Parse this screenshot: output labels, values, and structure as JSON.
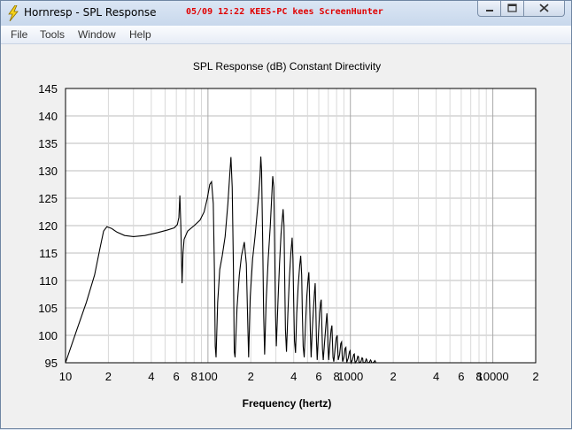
{
  "window": {
    "title": "Hornresp - SPL Response",
    "overlay_stamp": "05/09 12:22 KEES-PC kees ScreenHunter",
    "icon": "lightning-bolt-icon",
    "controls": [
      "minimize-icon",
      "maximize-icon",
      "close-icon"
    ]
  },
  "menu": {
    "items": [
      "File",
      "Tools",
      "Window",
      "Help"
    ]
  },
  "chart_data": {
    "type": "line",
    "title": "SPL Response (dB)   Constant Directivity",
    "xlabel": "Frequency (hertz)",
    "ylabel": "",
    "x_scale": "log",
    "xlim": [
      10,
      20000
    ],
    "ylim": [
      95,
      145
    ],
    "grid": true,
    "y_ticks": [
      95,
      100,
      105,
      110,
      115,
      120,
      125,
      130,
      135,
      140,
      145
    ],
    "x_ticks": [
      {
        "value": 10,
        "label": "10"
      },
      {
        "value": 20,
        "label": "2"
      },
      {
        "value": 40,
        "label": "4"
      },
      {
        "value": 60,
        "label": "6"
      },
      {
        "value": 80,
        "label": "8"
      },
      {
        "value": 100,
        "label": "100"
      },
      {
        "value": 200,
        "label": "2"
      },
      {
        "value": 400,
        "label": "4"
      },
      {
        "value": 600,
        "label": "6"
      },
      {
        "value": 800,
        "label": "8"
      },
      {
        "value": 1000,
        "label": "1000"
      },
      {
        "value": 2000,
        "label": "2"
      },
      {
        "value": 4000,
        "label": "4"
      },
      {
        "value": 6000,
        "label": "6"
      },
      {
        "value": 8000,
        "label": "8"
      },
      {
        "value": 10000,
        "label": "10000"
      },
      {
        "value": 20000,
        "label": "2"
      }
    ],
    "series": [
      {
        "color": "#000000",
        "points": [
          [
            10,
            95
          ],
          [
            12,
            101
          ],
          [
            14,
            106
          ],
          [
            16,
            111
          ],
          [
            17.5,
            116
          ],
          [
            18.5,
            119
          ],
          [
            19.5,
            119.8
          ],
          [
            21,
            119.5
          ],
          [
            23,
            118.8
          ],
          [
            26,
            118.2
          ],
          [
            30,
            118
          ],
          [
            36,
            118.2
          ],
          [
            44,
            118.7
          ],
          [
            52,
            119.2
          ],
          [
            58,
            119.6
          ],
          [
            61,
            120.2
          ],
          [
            62.5,
            121.5
          ],
          [
            63.5,
            125.5
          ],
          [
            64.5,
            120
          ],
          [
            65.2,
            114
          ],
          [
            65.8,
            109.5
          ],
          [
            66.8,
            115
          ],
          [
            68,
            117.5
          ],
          [
            72,
            119
          ],
          [
            80,
            120
          ],
          [
            88,
            121
          ],
          [
            94,
            122.5
          ],
          [
            99,
            125
          ],
          [
            103,
            127.5
          ],
          [
            106,
            128
          ],
          [
            109,
            124
          ],
          [
            111,
            112
          ],
          [
            112.5,
            98
          ],
          [
            114,
            96
          ],
          [
            117,
            106
          ],
          [
            121,
            112
          ],
          [
            126,
            114.5
          ],
          [
            132,
            118
          ],
          [
            138,
            124
          ],
          [
            142,
            129
          ],
          [
            145,
            132.5
          ],
          [
            148,
            127
          ],
          [
            151,
            112
          ],
          [
            153,
            97
          ],
          [
            155,
            96
          ],
          [
            160,
            105
          ],
          [
            166,
            111
          ],
          [
            172,
            114.5
          ],
          [
            180,
            117
          ],
          [
            186,
            113
          ],
          [
            190,
            103
          ],
          [
            193,
            96
          ],
          [
            198,
            107
          ],
          [
            206,
            114
          ],
          [
            214,
            118
          ],
          [
            221,
            122
          ],
          [
            227,
            125.5
          ],
          [
            232,
            129
          ],
          [
            235,
            132.6
          ],
          [
            238,
            130
          ],
          [
            242,
            118
          ],
          [
            246,
            104
          ],
          [
            250,
            96.5
          ],
          [
            256,
            106
          ],
          [
            265,
            114
          ],
          [
            274,
            120
          ],
          [
            280,
            125
          ],
          [
            285,
            129
          ],
          [
            290,
            127
          ],
          [
            294,
            116
          ],
          [
            298,
            104
          ],
          [
            302,
            98
          ],
          [
            310,
            106
          ],
          [
            318,
            113
          ],
          [
            326,
            118.5
          ],
          [
            332,
            121
          ],
          [
            337,
            123
          ],
          [
            342,
            120
          ],
          [
            346,
            110
          ],
          [
            350,
            101
          ],
          [
            356,
            97
          ],
          [
            364,
            104
          ],
          [
            373,
            110.5
          ],
          [
            382,
            115
          ],
          [
            390,
            117.8
          ],
          [
            395,
            114
          ],
          [
            400,
            106
          ],
          [
            405,
            99
          ],
          [
            412,
            96.8
          ],
          [
            420,
            104
          ],
          [
            430,
            109
          ],
          [
            440,
            112.5
          ],
          [
            448,
            114.5
          ],
          [
            455,
            111
          ],
          [
            460,
            104
          ],
          [
            466,
            98
          ],
          [
            474,
            96
          ],
          [
            484,
            102
          ],
          [
            494,
            107
          ],
          [
            504,
            110
          ],
          [
            511,
            111.5
          ],
          [
            517,
            107
          ],
          [
            523,
            101
          ],
          [
            530,
            96
          ],
          [
            540,
            101
          ],
          [
            551,
            105
          ],
          [
            560,
            108
          ],
          [
            566,
            109.5
          ],
          [
            572,
            105
          ],
          [
            578,
            99
          ],
          [
            585,
            95.5
          ],
          [
            596,
            100
          ],
          [
            608,
            104
          ],
          [
            618,
            106
          ],
          [
            624,
            106.5
          ],
          [
            630,
            102
          ],
          [
            637,
            97.5
          ],
          [
            645,
            95.5
          ],
          [
            660,
            99
          ],
          [
            674,
            102
          ],
          [
            684,
            104
          ],
          [
            690,
            102
          ],
          [
            696,
            98
          ],
          [
            704,
            95.5
          ],
          [
            718,
            98.5
          ],
          [
            732,
            101
          ],
          [
            742,
            101.8
          ],
          [
            748,
            99
          ],
          [
            755,
            96
          ],
          [
            765,
            95.2
          ],
          [
            780,
            97.5
          ],
          [
            795,
            99.5
          ],
          [
            808,
            100
          ],
          [
            815,
            97.5
          ],
          [
            822,
            95.5
          ],
          [
            840,
            96.5
          ],
          [
            856,
            98.5
          ],
          [
            868,
            98.8
          ],
          [
            875,
            96.5
          ],
          [
            882,
            95.2
          ],
          [
            900,
            96
          ],
          [
            918,
            97.6
          ],
          [
            930,
            97.8
          ],
          [
            937,
            96
          ],
          [
            944,
            95.1
          ],
          [
            965,
            95.8
          ],
          [
            985,
            97
          ],
          [
            996,
            97.2
          ],
          [
            1003,
            95.6
          ],
          [
            1012,
            95
          ],
          [
            1035,
            95.6
          ],
          [
            1055,
            96.5
          ],
          [
            1066,
            96.6
          ],
          [
            1074,
            95.4
          ],
          [
            1082,
            95
          ],
          [
            1108,
            95.4
          ],
          [
            1128,
            96.2
          ],
          [
            1140,
            96.1
          ],
          [
            1148,
            95.2
          ],
          [
            1158,
            95
          ],
          [
            1185,
            95.2
          ],
          [
            1207,
            95.9
          ],
          [
            1220,
            95.8
          ],
          [
            1228,
            95.1
          ],
          [
            1240,
            95
          ],
          [
            1268,
            95.1
          ],
          [
            1292,
            95.7
          ],
          [
            1305,
            95.5
          ],
          [
            1315,
            95
          ],
          [
            1330,
            95
          ],
          [
            1360,
            95.1
          ],
          [
            1385,
            95.5
          ],
          [
            1400,
            95.3
          ],
          [
            1410,
            95
          ],
          [
            1430,
            95
          ],
          [
            1460,
            95.1
          ],
          [
            1485,
            95.4
          ],
          [
            1500,
            95.2
          ],
          [
            1510,
            95
          ],
          [
            1550,
            95
          ]
        ]
      }
    ]
  }
}
